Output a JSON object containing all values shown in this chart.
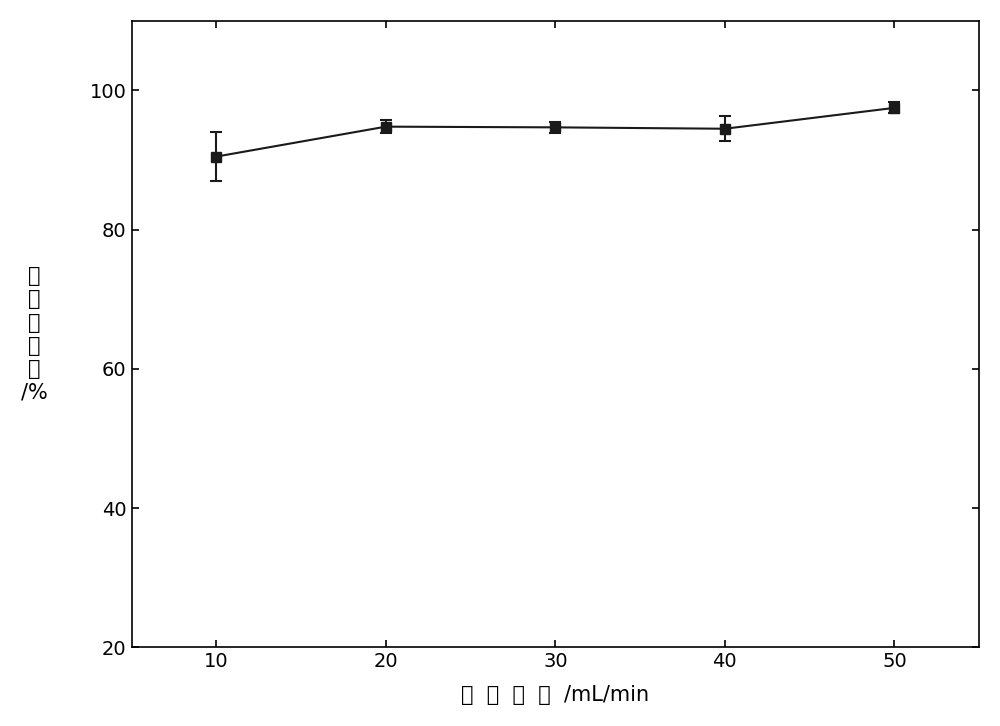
{
  "x": [
    10,
    20,
    30,
    40,
    50
  ],
  "y": [
    90.5,
    94.8,
    94.7,
    94.5,
    97.5
  ],
  "yerr": [
    3.5,
    0.9,
    0.8,
    1.8,
    0.8
  ],
  "xlim": [
    5,
    55
  ],
  "ylim": [
    20,
    110
  ],
  "yticks": [
    20,
    40,
    60,
    80,
    100
  ],
  "xticks": [
    10,
    20,
    30,
    40,
    50
  ],
  "xlabel": "气  体  流  量  /mL/min",
  "ylabel_chars": [
    "细",
    "胞",
    "存",
    "活",
    "率",
    "/%"
  ],
  "line_color": "#1a1a1a",
  "marker": "s",
  "marker_color": "#1a1a1a",
  "marker_size": 7,
  "line_width": 1.5,
  "capsize": 4,
  "background_color": "#ffffff",
  "tick_fontsize": 14,
  "label_fontsize": 15
}
